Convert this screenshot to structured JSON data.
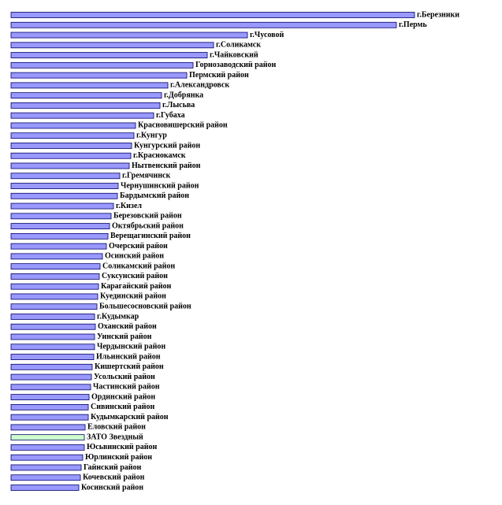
{
  "chart_data": {
    "type": "hbar",
    "categories": [
      "г.Березники",
      "г.Пермь",
      "г.Чусовой",
      "г.Соликамск",
      "г.Чайковский",
      "Горнозаводский район",
      "Пермский район",
      "г.Александровск",
      "г.Добрянка",
      "г.Лысьва",
      "г.Губаха",
      "Красновишерский район",
      "г.Кунгур",
      "Кунгурский район",
      "г.Краснокамск",
      "Нытвенский район",
      "г.Гремячинск",
      "Чернушинский район",
      "Бардымский район",
      "г.Кизел",
      "Березовский район",
      "Октябрьский район",
      "Верещагинский район",
      "Очерский район",
      "Осинский район",
      "Соликамский район",
      "Суксунский район",
      "Карагайский район",
      "Куединский район",
      "Большесосновский район",
      "г.Кудымкар",
      "Оханский район",
      "Уинский район",
      "Чердынский район",
      "Ильинский район",
      "Кишертский район",
      "Усольский район",
      "Частинский район",
      "Ординский район",
      "Сивинский район",
      "Кудымкарский район",
      "Еловский район",
      "ЗАТО Звездный",
      "Юсьвинский район",
      "Юрлинский район",
      "Гайнский район",
      "Кочевский район",
      "Косинский район"
    ],
    "values": [
      512,
      489,
      300,
      257,
      249,
      231,
      223,
      199,
      191,
      189,
      181,
      158,
      156,
      153,
      152,
      150,
      138,
      136,
      135,
      130,
      127,
      125,
      123,
      121,
      116,
      113,
      112,
      111,
      110,
      109,
      106,
      107,
      106,
      106,
      105,
      103,
      102,
      101,
      99,
      98,
      98,
      94,
      93,
      93,
      91,
      89,
      88,
      86
    ],
    "colors": [
      "#9999ff",
      "#9999ff",
      "#9999ff",
      "#9999ff",
      "#9999ff",
      "#9999ff",
      "#9999ff",
      "#9999ff",
      "#9999ff",
      "#9999ff",
      "#9999ff",
      "#9999ff",
      "#9999ff",
      "#9999ff",
      "#9999ff",
      "#9999ff",
      "#9999ff",
      "#9999ff",
      "#9999ff",
      "#9999ff",
      "#9999ff",
      "#9999ff",
      "#9999ff",
      "#9999ff",
      "#9999ff",
      "#9999ff",
      "#9999ff",
      "#9999ff",
      "#9999ff",
      "#9999ff",
      "#9999ff",
      "#9999ff",
      "#9999ff",
      "#9999ff",
      "#9999ff",
      "#9999ff",
      "#9999ff",
      "#9999ff",
      "#9999ff",
      "#9999ff",
      "#9999ff",
      "#9999ff",
      "#ccffcc",
      "#9999ff",
      "#9999ff",
      "#9999ff",
      "#9999ff",
      "#9999ff"
    ],
    "xlim": [
      0,
      512
    ]
  }
}
